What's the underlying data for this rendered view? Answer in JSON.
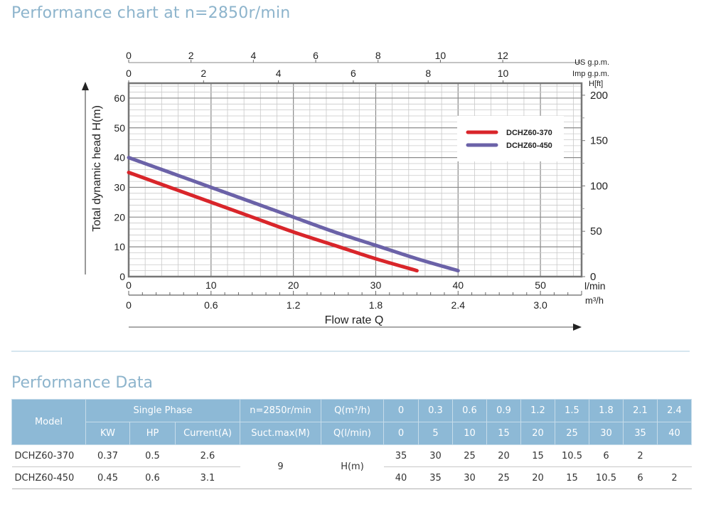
{
  "page": {
    "chart_title": "Performance chart at n=2850r/min",
    "table_title": "Performance Data"
  },
  "colors": {
    "title": "#8db4cc",
    "header_bg": "#8db9d6",
    "series_370": "#d9252a",
    "series_450": "#6b62a8"
  },
  "chart_data": {
    "type": "line",
    "title": "Performance chart at n=2850r/min",
    "xlabel": "Flow rate Q",
    "ylabel": "Total dynamic head H(m)",
    "xlim": [
      0,
      55
    ],
    "ylim": [
      0,
      65
    ],
    "grid": true,
    "legend_position": "top-right",
    "x_ticks_lmin": {
      "unit": "l/min",
      "values": [
        0,
        10,
        20,
        30,
        40,
        50
      ]
    },
    "x_ticks_m3h": {
      "unit": "m³/h",
      "labels": [
        "0",
        "0.6",
        "1.2",
        "1.8",
        "2.4",
        "3.0"
      ],
      "values_lmin": [
        0,
        10,
        20,
        30,
        40,
        50
      ]
    },
    "top_ticks_us": {
      "unit": "US g.p.m.",
      "labels": [
        "0",
        "2",
        "4",
        "6",
        "8",
        "10",
        "12"
      ]
    },
    "top_ticks_imp": {
      "unit": "Imp g.p.m.",
      "labels": [
        "0",
        "2",
        "4",
        "6",
        "8",
        "10"
      ]
    },
    "y_ticks_m": [
      0,
      10,
      20,
      30,
      40,
      50,
      60
    ],
    "y_ticks_ft": {
      "unit": "H[ft]",
      "labels": [
        "0",
        "50",
        "100",
        "150",
        "200"
      ]
    },
    "series": [
      {
        "name": "DCHZ60-370",
        "color": "#d9252a",
        "x": [
          0,
          5,
          10,
          15,
          20,
          25,
          30,
          35
        ],
        "y": [
          35,
          30,
          25,
          20,
          15,
          10.5,
          6,
          2
        ]
      },
      {
        "name": "DCHZ60-450",
        "color": "#6b62a8",
        "x": [
          0,
          5,
          10,
          15,
          20,
          25,
          30,
          35,
          40
        ],
        "y": [
          40,
          35,
          30,
          25,
          20,
          15,
          10.5,
          6,
          2
        ]
      }
    ]
  },
  "table": {
    "h_model": "Model",
    "h_single_phase": "Single Phase",
    "h_speed": "n=2850r/min",
    "h_q_m3h": "Q(m³/h)",
    "h_kw": "KW",
    "h_hp": "HP",
    "h_current": "Current(A)",
    "h_suct": "Suct.max(M)",
    "h_q_lmin": "Q(l/min)",
    "q_m3h": [
      "0",
      "0.3",
      "0.6",
      "0.9",
      "1.2",
      "1.5",
      "1.8",
      "2.1",
      "2.4"
    ],
    "q_lmin": [
      "0",
      "5",
      "10",
      "15",
      "20",
      "25",
      "30",
      "35",
      "40"
    ],
    "suct_value": "9",
    "h_label": "H(m)",
    "rows": [
      {
        "model": "DCHZ60-370",
        "kw": "0.37",
        "hp": "0.5",
        "current": "2.6",
        "h": [
          "35",
          "30",
          "25",
          "20",
          "15",
          "10.5",
          "6",
          "2",
          ""
        ]
      },
      {
        "model": "DCHZ60-450",
        "kw": "0.45",
        "hp": "0.6",
        "current": "3.1",
        "h": [
          "40",
          "35",
          "30",
          "25",
          "20",
          "15",
          "10.5",
          "6",
          "2"
        ]
      }
    ]
  }
}
